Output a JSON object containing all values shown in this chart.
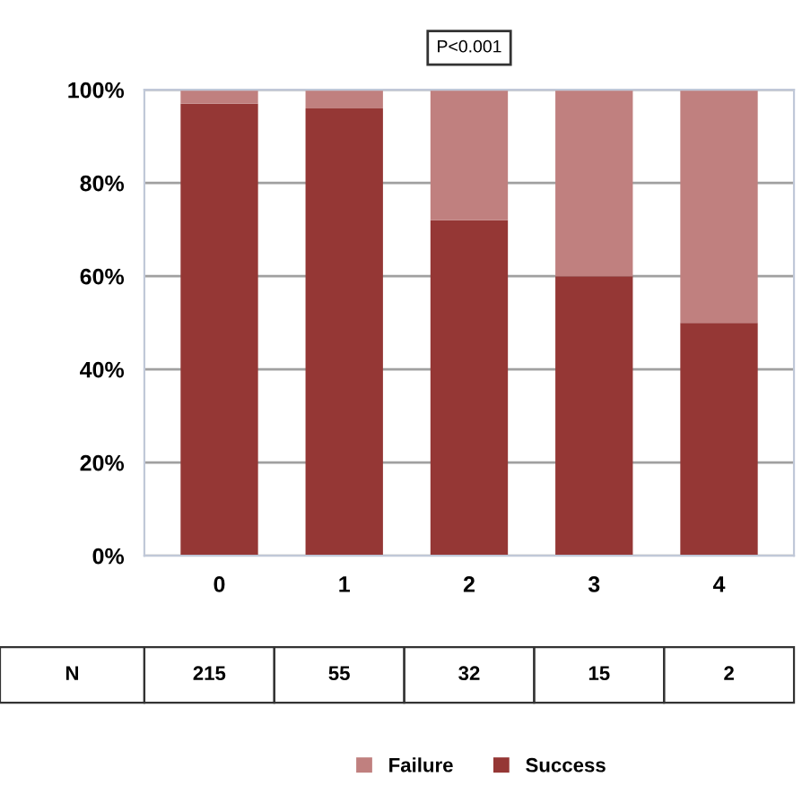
{
  "chart_data": {
    "type": "bar",
    "stacked": true,
    "categories": [
      "0",
      "1",
      "2",
      "3",
      "4"
    ],
    "series": [
      {
        "name": "Success",
        "color": "#953735",
        "values": [
          97,
          96,
          72,
          60,
          50
        ]
      },
      {
        "name": "Failure",
        "color": "#c0807f",
        "values": [
          3,
          4,
          28,
          40,
          50
        ]
      }
    ],
    "ylim": [
      0,
      100
    ],
    "yticks": [
      {
        "value": 0,
        "label": "0%"
      },
      {
        "value": 20,
        "label": "20%"
      },
      {
        "value": 40,
        "label": "40%"
      },
      {
        "value": 60,
        "label": "60%"
      },
      {
        "value": 80,
        "label": "80%"
      },
      {
        "value": 100,
        "label": "100%"
      }
    ],
    "grid": "y",
    "legend": "bottom",
    "annotations": [
      "P<0.001",
      "N",
      "215",
      "55",
      "32",
      "15",
      "2"
    ]
  }
}
